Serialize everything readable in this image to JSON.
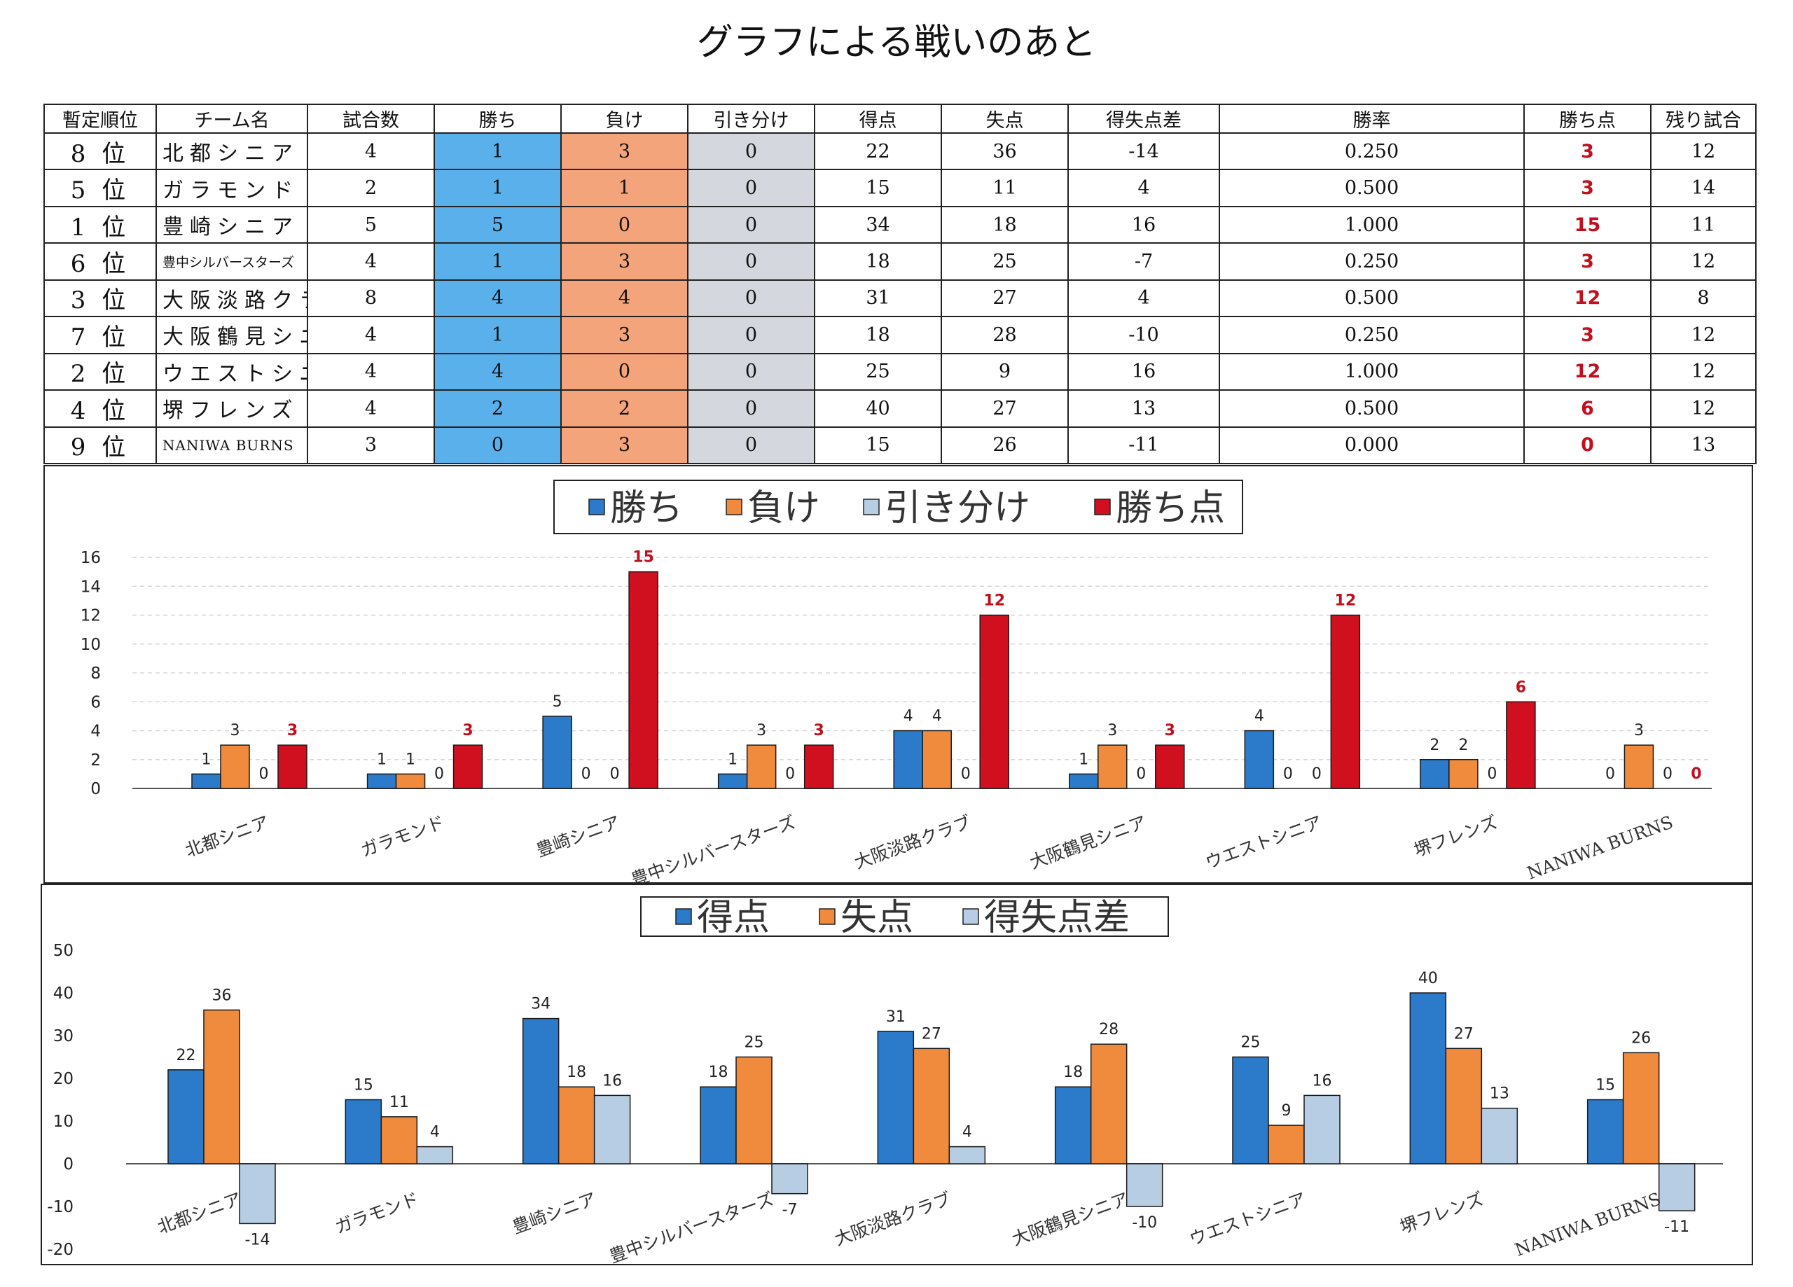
{
  "title": "グラフによる戦いのあと",
  "table": {
    "headers": [
      "暫定順位",
      "チーム名",
      "試合数",
      "勝ち",
      "負け",
      "引き分け",
      "得点",
      "失点",
      "得失点差",
      "勝率",
      "勝ち点",
      "残り試合"
    ],
    "rows": [
      {
        "rank": "8 位",
        "team": "北都シニア",
        "games": "4",
        "wins": "1",
        "losses": "3",
        "draws": "0",
        "scored": "22",
        "conceded": "36",
        "diff": "-14",
        "rate": "0.250",
        "points": "3",
        "remaining": "12"
      },
      {
        "rank": "5 位",
        "team": "ガラモンド",
        "games": "2",
        "wins": "1",
        "losses": "1",
        "draws": "0",
        "scored": "15",
        "conceded": "11",
        "diff": "4",
        "rate": "0.500",
        "points": "3",
        "remaining": "14"
      },
      {
        "rank": "1 位",
        "team": "豊崎シニア",
        "games": "5",
        "wins": "5",
        "losses": "0",
        "draws": "0",
        "scored": "34",
        "conceded": "18",
        "diff": "16",
        "rate": "1.000",
        "points": "15",
        "remaining": "11"
      },
      {
        "rank": "6 位",
        "team": "豊中シルバースターズ",
        "games": "4",
        "wins": "1",
        "losses": "3",
        "draws": "0",
        "scored": "18",
        "conceded": "25",
        "diff": "-7",
        "rate": "0.250",
        "points": "3",
        "remaining": "12"
      },
      {
        "rank": "3 位",
        "team": "大阪淡路クラブ",
        "games": "8",
        "wins": "4",
        "losses": "4",
        "draws": "0",
        "scored": "31",
        "conceded": "27",
        "diff": "4",
        "rate": "0.500",
        "points": "12",
        "remaining": "8"
      },
      {
        "rank": "7 位",
        "team": "大阪鶴見シニア",
        "games": "4",
        "wins": "1",
        "losses": "3",
        "draws": "0",
        "scored": "18",
        "conceded": "28",
        "diff": "-10",
        "rate": "0.250",
        "points": "3",
        "remaining": "12"
      },
      {
        "rank": "2 位",
        "team": "ウエストシニア",
        "games": "4",
        "wins": "4",
        "losses": "0",
        "draws": "0",
        "scored": "25",
        "conceded": "9",
        "diff": "16",
        "rate": "1.000",
        "points": "12",
        "remaining": "12"
      },
      {
        "rank": "4 位",
        "team": "堺フレンズ",
        "games": "4",
        "wins": "2",
        "losses": "2",
        "draws": "0",
        "scored": "40",
        "conceded": "27",
        "diff": "13",
        "rate": "0.500",
        "points": "6",
        "remaining": "12"
      },
      {
        "rank": "9 位",
        "team": "NANIWA BURNS",
        "games": "3",
        "wins": "0",
        "losses": "3",
        "draws": "0",
        "scored": "15",
        "conceded": "26",
        "diff": "-11",
        "rate": "0.000",
        "points": "0",
        "remaining": "13"
      }
    ]
  },
  "colors": {
    "blue": "#2b7bca",
    "orange": "#f08a3c",
    "lightblue": "#b7cde3",
    "red": "#d0101f",
    "points_label": "#c0101e",
    "win_cell": "#5ab0ea",
    "loss_cell": "#f4a47a",
    "draw_cell": "#d4d8de"
  },
  "chart_data": [
    {
      "type": "bar",
      "categories": [
        "北都シニア",
        "ガラモンド",
        "豊崎シニア",
        "豊中シルバースターズ",
        "大阪淡路クラブ",
        "大阪鶴見シニア",
        "ウエストシニア",
        "堺フレンズ",
        "NANIWA BURNS"
      ],
      "series": [
        {
          "name": "勝ち",
          "color": "#2b7bca",
          "values": [
            1,
            1,
            5,
            1,
            4,
            1,
            4,
            2,
            0
          ]
        },
        {
          "name": "負け",
          "color": "#f08a3c",
          "values": [
            3,
            1,
            0,
            3,
            4,
            3,
            0,
            2,
            3
          ]
        },
        {
          "name": "引き分け",
          "color": "#b7cde3",
          "values": [
            0,
            0,
            0,
            0,
            0,
            0,
            0,
            0,
            0
          ]
        },
        {
          "name": "勝ち点",
          "color": "#d0101f",
          "values": [
            3,
            3,
            15,
            3,
            12,
            3,
            12,
            6,
            0
          ]
        }
      ],
      "yticks": [
        0,
        2,
        4,
        6,
        8,
        10,
        12,
        14,
        16
      ],
      "ylim": [
        0,
        16
      ],
      "grid": true,
      "legend": "top-center"
    },
    {
      "type": "bar",
      "categories": [
        "北都シニア",
        "ガラモンド",
        "豊崎シニア",
        "豊中シルバースターズ",
        "大阪淡路クラブ",
        "大阪鶴見シニア",
        "ウエストシニア",
        "堺フレンズ",
        "NANIWA BURNS"
      ],
      "series": [
        {
          "name": "得点",
          "color": "#2b7bca",
          "values": [
            22,
            15,
            34,
            18,
            31,
            18,
            25,
            40,
            15
          ]
        },
        {
          "name": "失点",
          "color": "#f08a3c",
          "values": [
            36,
            11,
            18,
            25,
            27,
            28,
            9,
            27,
            26
          ]
        },
        {
          "name": "得失点差",
          "color": "#b7cde3",
          "values": [
            -14,
            4,
            16,
            -7,
            4,
            -10,
            16,
            13,
            -11
          ]
        }
      ],
      "yticks": [
        -20,
        -10,
        0,
        10,
        20,
        30,
        40,
        50
      ],
      "ylim": [
        -20,
        50
      ],
      "grid": false,
      "legend": "top-center"
    }
  ]
}
